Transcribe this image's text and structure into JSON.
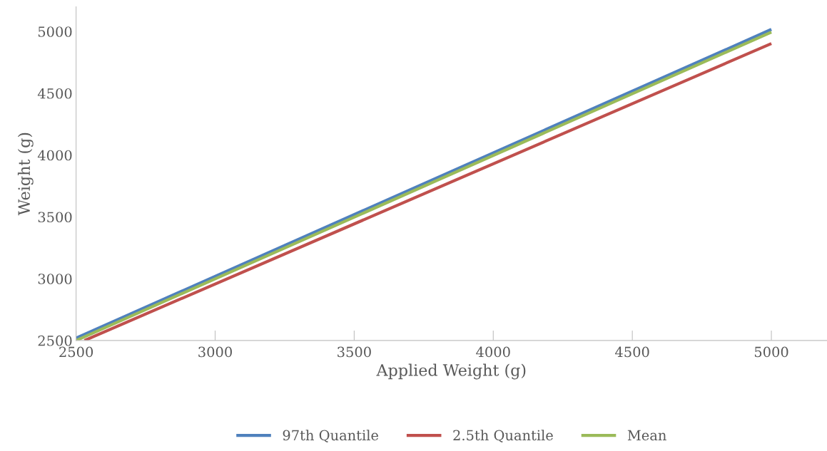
{
  "chart_data": {
    "type": "line",
    "xlabel": "Applied Weight (g)",
    "ylabel": "Weight (g)",
    "xlim": [
      2500,
      5200
    ],
    "xticks": [
      2500,
      3000,
      3500,
      4000,
      4500,
      5000
    ],
    "ylim": [
      2500,
      5200
    ],
    "yticks": [
      2500,
      3000,
      3500,
      4000,
      4500,
      5000
    ],
    "grid": false,
    "legend": "bottom",
    "marker": "none",
    "line_style": "solid",
    "series": [
      {
        "name": "97th Quantile",
        "color": "#4f81bd",
        "x": [
          2500,
          5000
        ],
        "values": [
          2520,
          5017
        ]
      },
      {
        "name": "2.5th Quantile",
        "color": "#c0504d",
        "x": [
          2530,
          5000
        ],
        "values": [
          2500,
          4902
        ]
      },
      {
        "name": "Mean",
        "color": "#9bbb59",
        "x": [
          2500,
          5000
        ],
        "values": [
          2500,
          4995
        ]
      }
    ]
  }
}
